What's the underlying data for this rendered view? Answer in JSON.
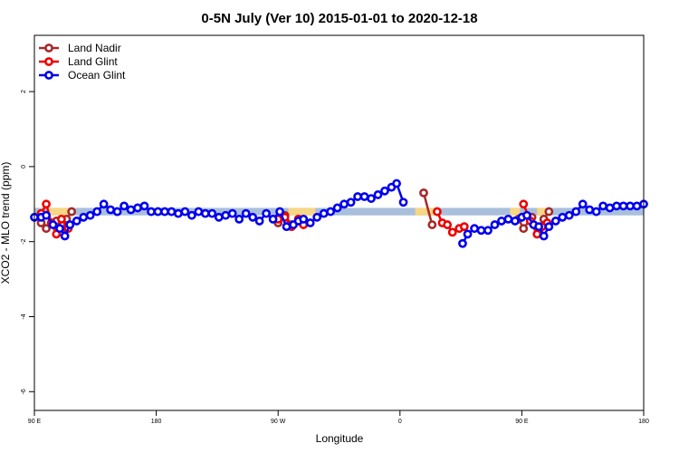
{
  "chart_data": {
    "type": "line",
    "title": "0-5N July (Ver 10)   2015-01-01 to 2020-12-18",
    "xlabel": "Longitude",
    "ylabel": "XCO2 - MLO trend (ppm)",
    "xlim": [
      -90,
      270
    ],
    "ylim": [
      -6.5,
      3.5
    ],
    "x_ticks": [
      {
        "value": -90,
        "label": "90 E"
      },
      {
        "value": -18,
        "label": "180"
      },
      {
        "value": 54,
        "label": "90 W"
      },
      {
        "value": 126,
        "label": "0"
      },
      {
        "value": 198,
        "label": "90 E"
      },
      {
        "value": 270,
        "label": "180"
      }
    ],
    "y_ticks": [
      {
        "value": 2,
        "label": "2"
      },
      {
        "value": 0,
        "label": "0"
      },
      {
        "value": -2,
        "label": "-2"
      },
      {
        "value": -4,
        "label": "-4"
      },
      {
        "value": -6,
        "label": "-6"
      }
    ],
    "grid": false,
    "legend_position": "top-left",
    "band": {
      "low": -1.3,
      "high": -1.1,
      "color": "#a9bfdc"
    },
    "band_highlights": [
      {
        "x": [
          -83,
          -69
        ],
        "color": "#f7d685"
      },
      {
        "x": [
          60,
          76
        ],
        "color": "#f7d685"
      },
      {
        "x": [
          135,
          150
        ],
        "color": "#f7d685"
      },
      {
        "x": [
          191,
          197
        ],
        "color": "#f7d685"
      },
      {
        "x": [
          207,
          214
        ],
        "color": "#f7d685"
      }
    ],
    "series": [
      {
        "name": "Land Nadir",
        "color": "#a52a2a",
        "segments": [
          [
            [
              -86,
              -1.5
            ],
            [
              -83,
              -1.65
            ],
            [
              -77,
              -1.45
            ],
            [
              -74,
              -1.75
            ],
            [
              -71,
              -1.4
            ],
            [
              -68,
              -1.2
            ]
          ],
          [
            [
              54,
              -1.5
            ],
            [
              58,
              -1.3
            ],
            [
              62,
              -1.55
            ],
            [
              66,
              -1.4
            ],
            [
              69,
              -1.5
            ]
          ],
          [
            [
              140,
              -0.7
            ],
            [
              145,
              -1.55
            ]
          ],
          [
            [
              196,
              -1.4
            ],
            [
              199,
              -1.65
            ],
            [
              204,
              -1.35
            ],
            [
              208,
              -1.7
            ],
            [
              211,
              -1.4
            ],
            [
              214,
              -1.2
            ]
          ]
        ]
      },
      {
        "name": "Land Glint",
        "color": "#ee0000",
        "segments": [
          [
            [
              -86,
              -1.25
            ],
            [
              -83,
              -1.0
            ],
            [
              -80,
              -1.5
            ],
            [
              -77,
              -1.8
            ],
            [
              -74,
              -1.4
            ],
            [
              -70,
              -1.65
            ]
          ],
          [
            [
              54,
              -1.4
            ],
            [
              58,
              -1.35
            ],
            [
              62,
              -1.6
            ],
            [
              66,
              -1.4
            ],
            [
              69,
              -1.55
            ]
          ],
          [
            [
              148,
              -1.2
            ],
            [
              151,
              -1.5
            ],
            [
              154,
              -1.55
            ],
            [
              157,
              -1.75
            ],
            [
              161,
              -1.65
            ],
            [
              164,
              -1.6
            ]
          ],
          [
            [
              199,
              -1.0
            ],
            [
              203,
              -1.45
            ],
            [
              207,
              -1.8
            ],
            [
              210,
              -1.6
            ],
            [
              213,
              -1.5
            ]
          ]
        ]
      },
      {
        "name": "Ocean Glint",
        "color": "#0000ee",
        "segments": [
          [
            [
              -90,
              -1.35
            ],
            [
              -86,
              -1.35
            ],
            [
              -83,
              -1.3
            ],
            [
              -79,
              -1.55
            ],
            [
              -75,
              -1.65
            ],
            [
              -72,
              -1.85
            ],
            [
              -69,
              -1.55
            ],
            [
              -65,
              -1.45
            ],
            [
              -61,
              -1.35
            ],
            [
              -57,
              -1.3
            ],
            [
              -53,
              -1.2
            ],
            [
              -49,
              -1.0
            ],
            [
              -45,
              -1.15
            ],
            [
              -41,
              -1.2
            ],
            [
              -37,
              -1.05
            ],
            [
              -33,
              -1.15
            ],
            [
              -29,
              -1.1
            ],
            [
              -25,
              -1.05
            ],
            [
              -21,
              -1.2
            ],
            [
              -17,
              -1.2
            ],
            [
              -13,
              -1.2
            ],
            [
              -9,
              -1.2
            ],
            [
              -5,
              -1.25
            ],
            [
              -1,
              -1.2
            ],
            [
              3,
              -1.3
            ],
            [
              7,
              -1.2
            ],
            [
              11,
              -1.25
            ],
            [
              15,
              -1.25
            ],
            [
              19,
              -1.35
            ],
            [
              23,
              -1.3
            ],
            [
              27,
              -1.25
            ],
            [
              31,
              -1.4
            ],
            [
              35,
              -1.25
            ],
            [
              39,
              -1.35
            ],
            [
              43,
              -1.45
            ],
            [
              47,
              -1.25
            ],
            [
              51,
              -1.4
            ],
            [
              55,
              -1.2
            ],
            [
              59,
              -1.6
            ],
            [
              63,
              -1.55
            ],
            [
              66,
              -1.45
            ],
            [
              69,
              -1.4
            ],
            [
              73,
              -1.5
            ],
            [
              77,
              -1.35
            ],
            [
              81,
              -1.25
            ],
            [
              85,
              -1.2
            ],
            [
              89,
              -1.1
            ],
            [
              93,
              -1.0
            ],
            [
              97,
              -0.95
            ],
            [
              101,
              -0.8
            ],
            [
              105,
              -0.8
            ],
            [
              109,
              -0.85
            ],
            [
              113,
              -0.75
            ],
            [
              117,
              -0.65
            ],
            [
              121,
              -0.55
            ],
            [
              124,
              -0.45
            ],
            [
              128,
              -0.95
            ]
          ],
          [
            [
              163,
              -2.05
            ],
            [
              166,
              -1.8
            ],
            [
              170,
              -1.65
            ],
            [
              174,
              -1.7
            ],
            [
              178,
              -1.7
            ],
            [
              182,
              -1.55
            ],
            [
              186,
              -1.45
            ],
            [
              190,
              -1.4
            ],
            [
              194,
              -1.45
            ],
            [
              198,
              -1.35
            ],
            [
              201,
              -1.3
            ],
            [
              205,
              -1.55
            ],
            [
              208,
              -1.6
            ],
            [
              211,
              -1.85
            ],
            [
              214,
              -1.6
            ],
            [
              218,
              -1.45
            ],
            [
              222,
              -1.35
            ],
            [
              226,
              -1.3
            ],
            [
              230,
              -1.2
            ],
            [
              234,
              -1.0
            ],
            [
              238,
              -1.15
            ],
            [
              242,
              -1.2
            ],
            [
              246,
              -1.05
            ],
            [
              250,
              -1.1
            ],
            [
              254,
              -1.05
            ],
            [
              258,
              -1.05
            ],
            [
              262,
              -1.05
            ],
            [
              266,
              -1.05
            ],
            [
              270,
              -1.0
            ]
          ]
        ]
      }
    ]
  }
}
